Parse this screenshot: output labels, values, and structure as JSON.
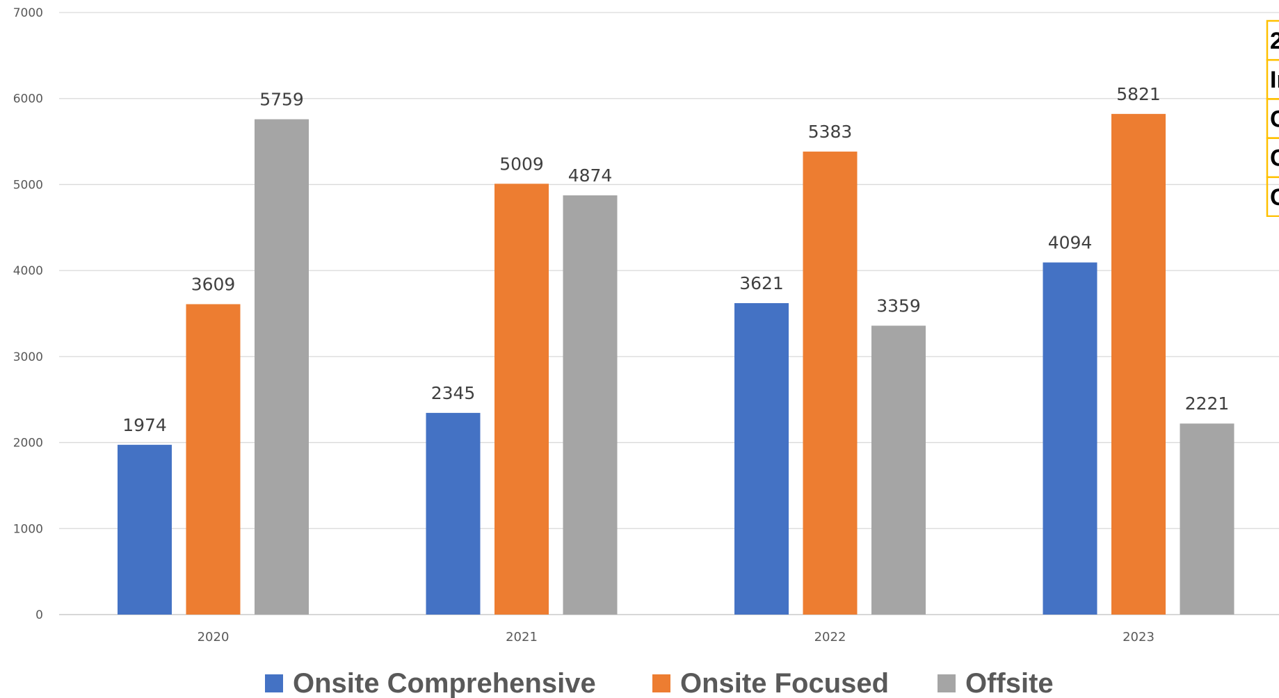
{
  "chart_data": {
    "type": "bar",
    "categories": [
      "2020",
      "2021",
      "2022",
      "2023"
    ],
    "series": [
      {
        "name": "Onsite Comprehensive",
        "color": "#4472C4",
        "values": [
          1974,
          2345,
          3621,
          4094
        ]
      },
      {
        "name": "Onsite Focused",
        "color": "#ED7D31",
        "values": [
          3609,
          5009,
          5383,
          5821
        ]
      },
      {
        "name": "Offsite",
        "color": "#A5A5A5",
        "values": [
          5759,
          4874,
          3359,
          2221
        ]
      }
    ],
    "y_ticks": [
      "0",
      "1000",
      "2000",
      "3000",
      "4000",
      "5000",
      "6000",
      "7000"
    ],
    "ylim": [
      0,
      7000
    ],
    "grid": true,
    "legend": "bottom",
    "data_labels": true
  },
  "side_table": {
    "cells": [
      "2",
      "In",
      "C",
      "C",
      "C"
    ],
    "border_color": "#FFC000"
  }
}
